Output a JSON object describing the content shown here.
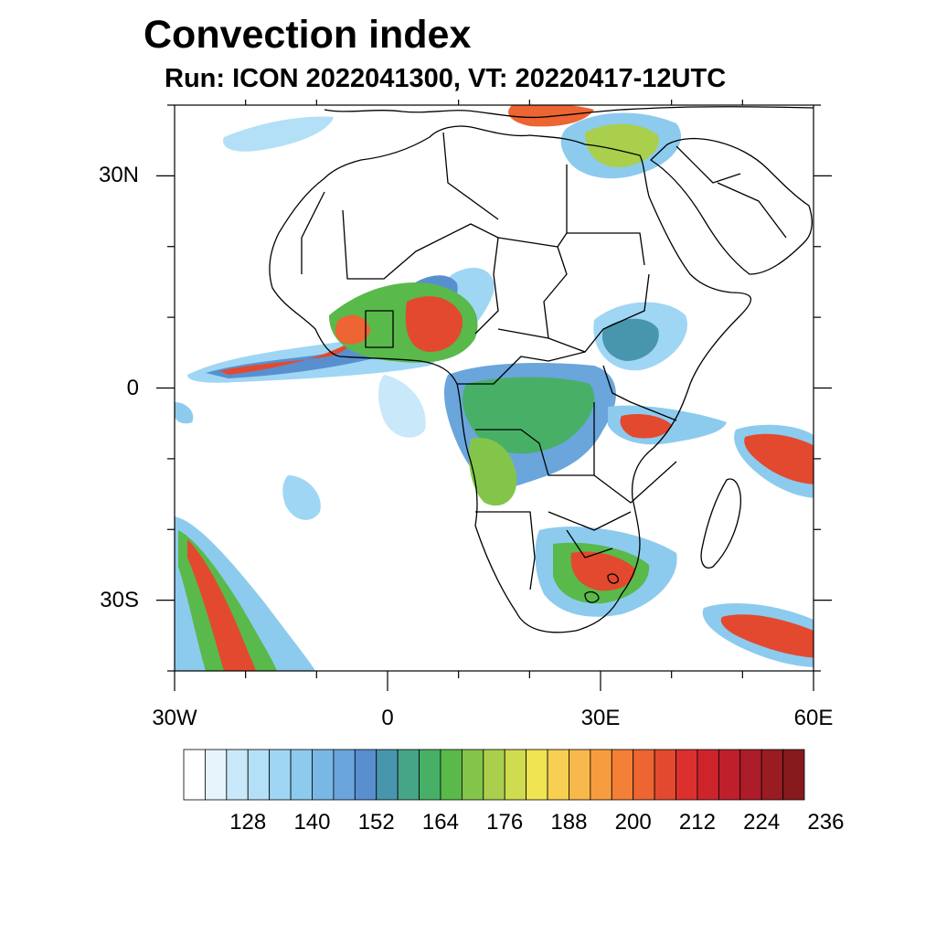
{
  "title": "Convection index",
  "subtitle": "Run: ICON 2022041300,  VT: 20220417-12UTC",
  "map": {
    "extent": {
      "lon": [
        -30,
        60
      ],
      "lat": [
        -40,
        40
      ]
    },
    "lon_labels": [
      {
        "lon": -30,
        "text": "30W"
      },
      {
        "lon": 0,
        "text": "0"
      },
      {
        "lon": 30,
        "text": "30E"
      },
      {
        "lon": 60,
        "text": "60E"
      }
    ],
    "lat_labels": [
      {
        "lat": 30,
        "text": "30N"
      },
      {
        "lat": 0,
        "text": "0"
      },
      {
        "lat": -30,
        "text": "30S"
      }
    ],
    "background": "#ffffff",
    "coastline_color": "#000000"
  },
  "colorbar": {
    "ticks": [
      "128",
      "140",
      "152",
      "164",
      "176",
      "188",
      "200",
      "212",
      "224",
      "236"
    ],
    "colors": [
      "#ffffff",
      "#e6f4fc",
      "#c9e8f9",
      "#b4e0f7",
      "#9fd6f4",
      "#8ccbee",
      "#79b8e5",
      "#6aa5dc",
      "#5890cf",
      "#4896ae",
      "#46a487",
      "#47b066",
      "#59b94b",
      "#83c54b",
      "#a9cf4c",
      "#cfdc4f",
      "#f0e453",
      "#f7cf52",
      "#f8b84c",
      "#f89d3f",
      "#f38036",
      "#ec6532",
      "#e3492f",
      "#db302e",
      "#cd242b",
      "#bf1f2a",
      "#ad1d29",
      "#991c23",
      "#861a1d"
    ]
  }
}
